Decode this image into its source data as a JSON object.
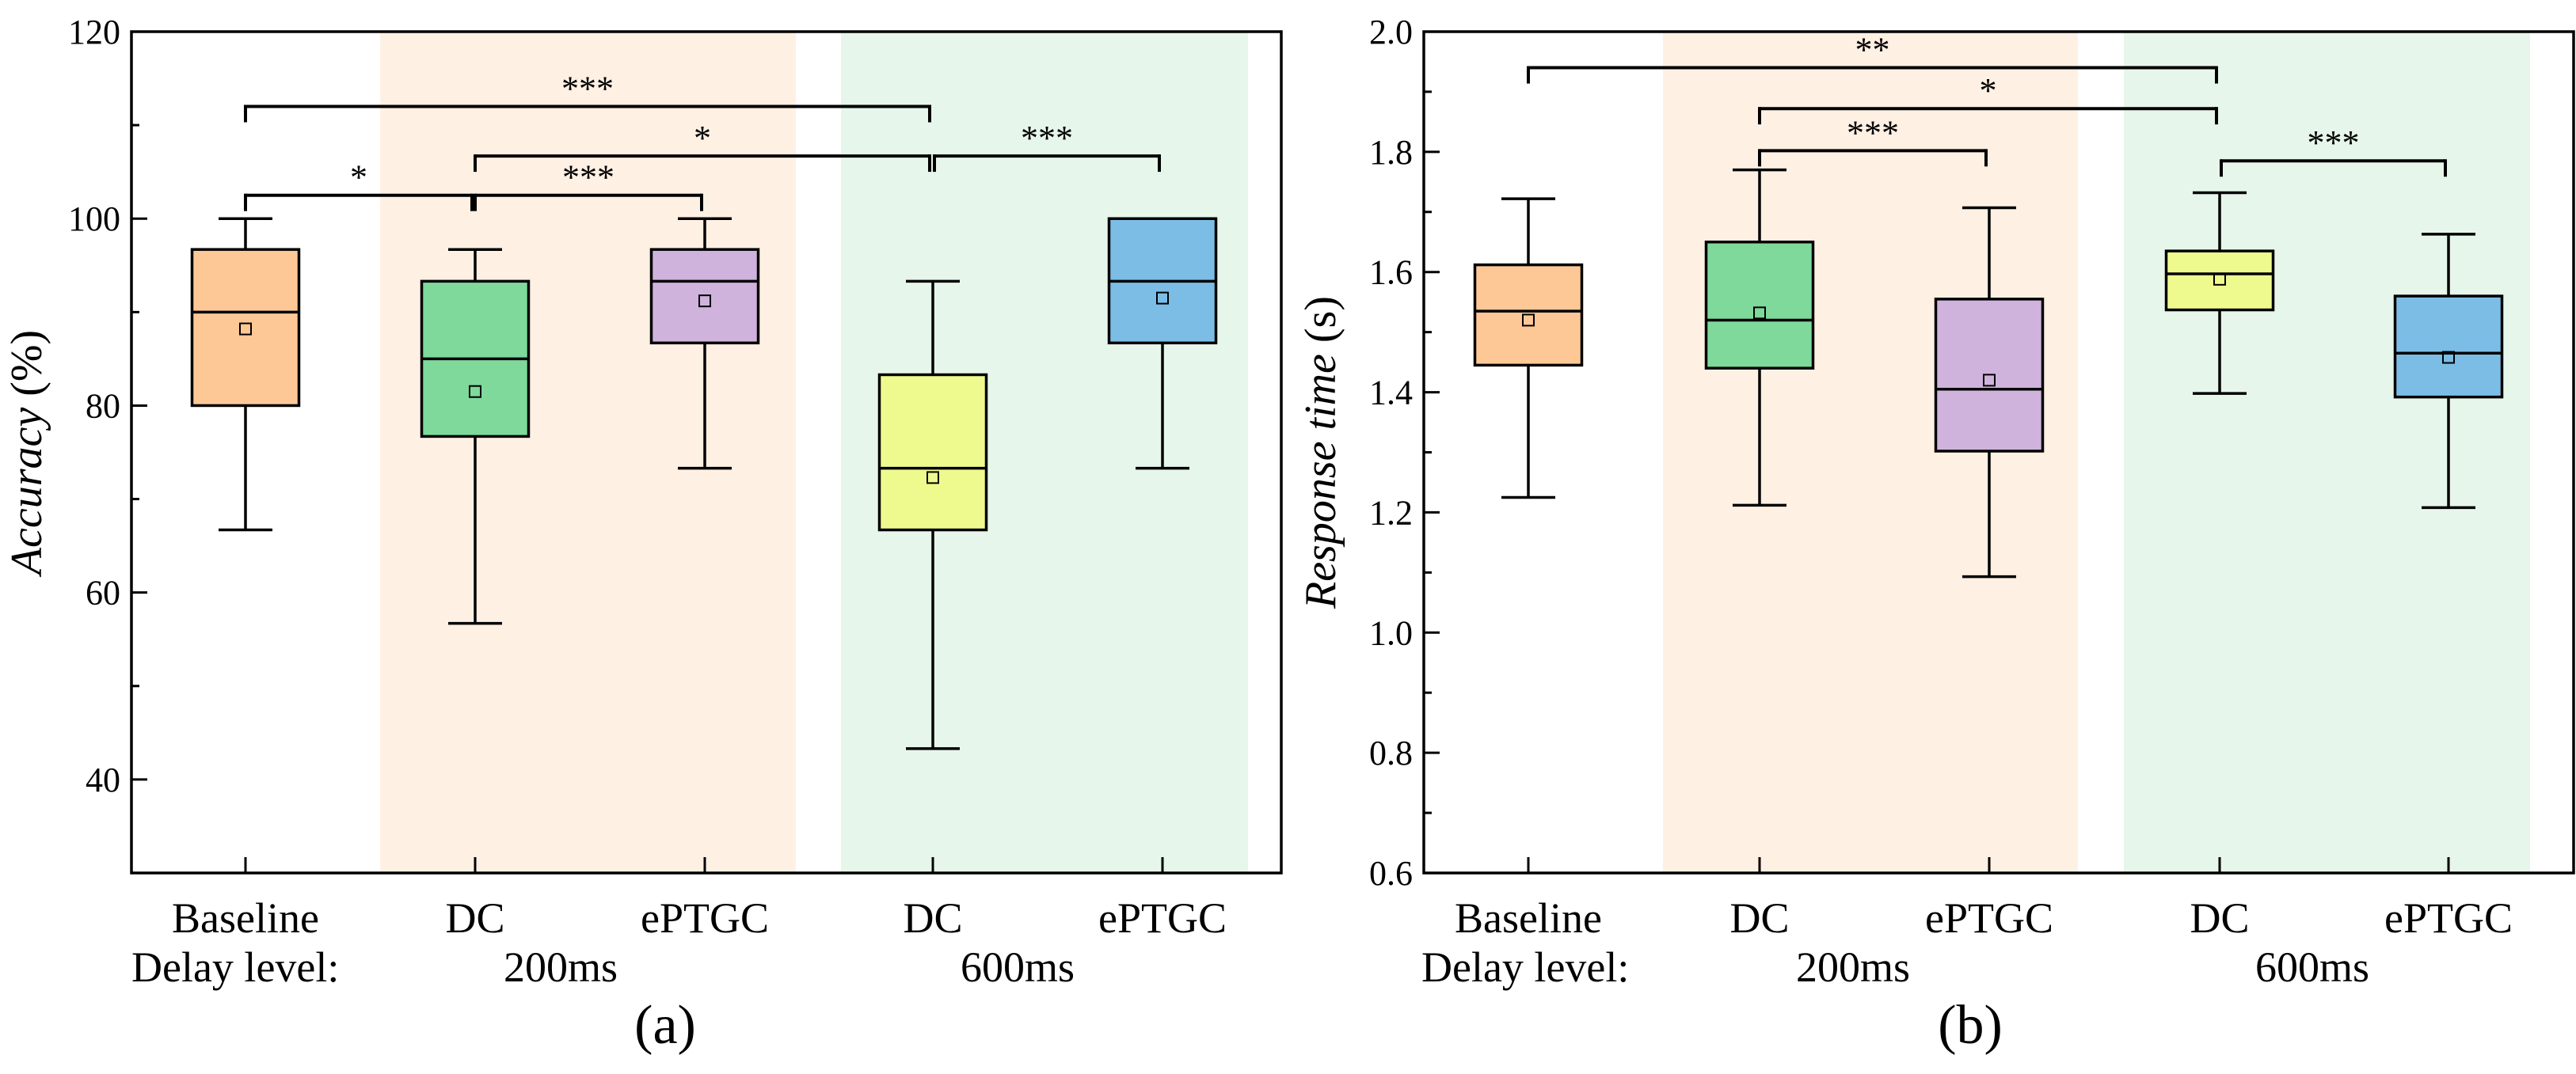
{
  "chart_data": [
    {
      "type": "box",
      "panel_label": "(a)",
      "ylabel_italic": "Accuracy",
      "ylabel_unit": " (%)",
      "ylim": [
        30,
        120
      ],
      "yticks": [
        40,
        60,
        80,
        100,
        120
      ],
      "minor_step": 10,
      "categories": [
        "Baseline",
        "DC",
        "ePTGC",
        "DC",
        "ePTGC"
      ],
      "delay_label": "Delay level:",
      "groups": [
        {
          "label": "200ms",
          "color": "#fff0e4",
          "members": [
            1,
            2
          ]
        },
        {
          "label": "600ms",
          "color": "#e7f6eb",
          "members": [
            3,
            4
          ]
        }
      ],
      "boxes": [
        {
          "name": "Baseline",
          "color": "#fdc896",
          "min": 66.7,
          "q1": 80.0,
          "median": 90.0,
          "q3": 96.7,
          "max": 100.0,
          "mean": 88.2
        },
        {
          "name": "DC 200ms",
          "color": "#7ed99a",
          "min": 56.7,
          "q1": 76.7,
          "median": 85.0,
          "q3": 93.3,
          "max": 96.7,
          "mean": 81.5
        },
        {
          "name": "ePTGC 200ms",
          "color": "#cfb3dd",
          "min": 73.3,
          "q1": 86.7,
          "median": 93.3,
          "q3": 96.7,
          "max": 100.0,
          "mean": 91.2
        },
        {
          "name": "DC 600ms",
          "color": "#eefa8e",
          "min": 43.3,
          "q1": 66.7,
          "median": 73.3,
          "q3": 83.3,
          "max": 93.3,
          "mean": 72.3
        },
        {
          "name": "ePTGC 600ms",
          "color": "#7cbde6",
          "min": 73.3,
          "q1": 86.7,
          "median": 93.3,
          "q3": 100.0,
          "max": 100.0,
          "mean": 91.5
        }
      ],
      "significance": [
        {
          "from": 0,
          "to": 3,
          "label": "***",
          "level": 112
        },
        {
          "from": 1,
          "to": 3,
          "label": "*",
          "level": 106.7
        },
        {
          "from": 3,
          "to": 4,
          "label": "***",
          "level": 106.7
        },
        {
          "from": 0,
          "to": 1,
          "label": "*",
          "level": 102.5
        },
        {
          "from": 1,
          "to": 2,
          "label": "***",
          "level": 102.5
        }
      ]
    },
    {
      "type": "box",
      "panel_label": "(b)",
      "ylabel_italic": "Response time",
      "ylabel_unit": " (s)",
      "ylim": [
        0.6,
        2.0
      ],
      "yticks": [
        0.6,
        0.8,
        1.0,
        1.2,
        1.4,
        1.6,
        1.8,
        2.0
      ],
      "ytick_labels": [
        "0.6",
        "0.8",
        "1.0",
        "1.2",
        "1.4",
        "1.6",
        "1.8",
        "2.0"
      ],
      "minor_step": 0.1,
      "categories": [
        "Baseline",
        "DC",
        "ePTGC",
        "DC",
        "ePTGC"
      ],
      "delay_label": "Delay level:",
      "groups": [
        {
          "label": "200ms",
          "color": "#fff0e4",
          "members": [
            1,
            2
          ]
        },
        {
          "label": "600ms",
          "color": "#e7f6eb",
          "members": [
            3,
            4
          ]
        }
      ],
      "boxes": [
        {
          "name": "Baseline",
          "color": "#fdc896",
          "min": 1.225,
          "q1": 1.445,
          "median": 1.535,
          "q3": 1.612,
          "max": 1.722,
          "mean": 1.52
        },
        {
          "name": "DC 200ms",
          "color": "#7ed99a",
          "min": 1.212,
          "q1": 1.44,
          "median": 1.52,
          "q3": 1.65,
          "max": 1.77,
          "mean": 1.532
        },
        {
          "name": "ePTGC 200ms",
          "color": "#cfb3dd",
          "min": 1.093,
          "q1": 1.302,
          "median": 1.405,
          "q3": 1.555,
          "max": 1.707,
          "mean": 1.42
        },
        {
          "name": "DC 600ms",
          "color": "#eefa8e",
          "min": 1.398,
          "q1": 1.537,
          "median": 1.597,
          "q3": 1.635,
          "max": 1.732,
          "mean": 1.588
        },
        {
          "name": "ePTGC 600ms",
          "color": "#7cbde6",
          "min": 1.208,
          "q1": 1.392,
          "median": 1.465,
          "q3": 1.56,
          "max": 1.663,
          "mean": 1.458
        }
      ],
      "significance": [
        {
          "from": 0,
          "to": 3,
          "label": "**",
          "level": 1.94
        },
        {
          "from": 1,
          "to": 3,
          "label": "*",
          "level": 1.872
        },
        {
          "from": 1,
          "to": 2,
          "label": "***",
          "level": 1.802
        },
        {
          "from": 3,
          "to": 4,
          "label": "***",
          "level": 1.785
        }
      ]
    }
  ]
}
